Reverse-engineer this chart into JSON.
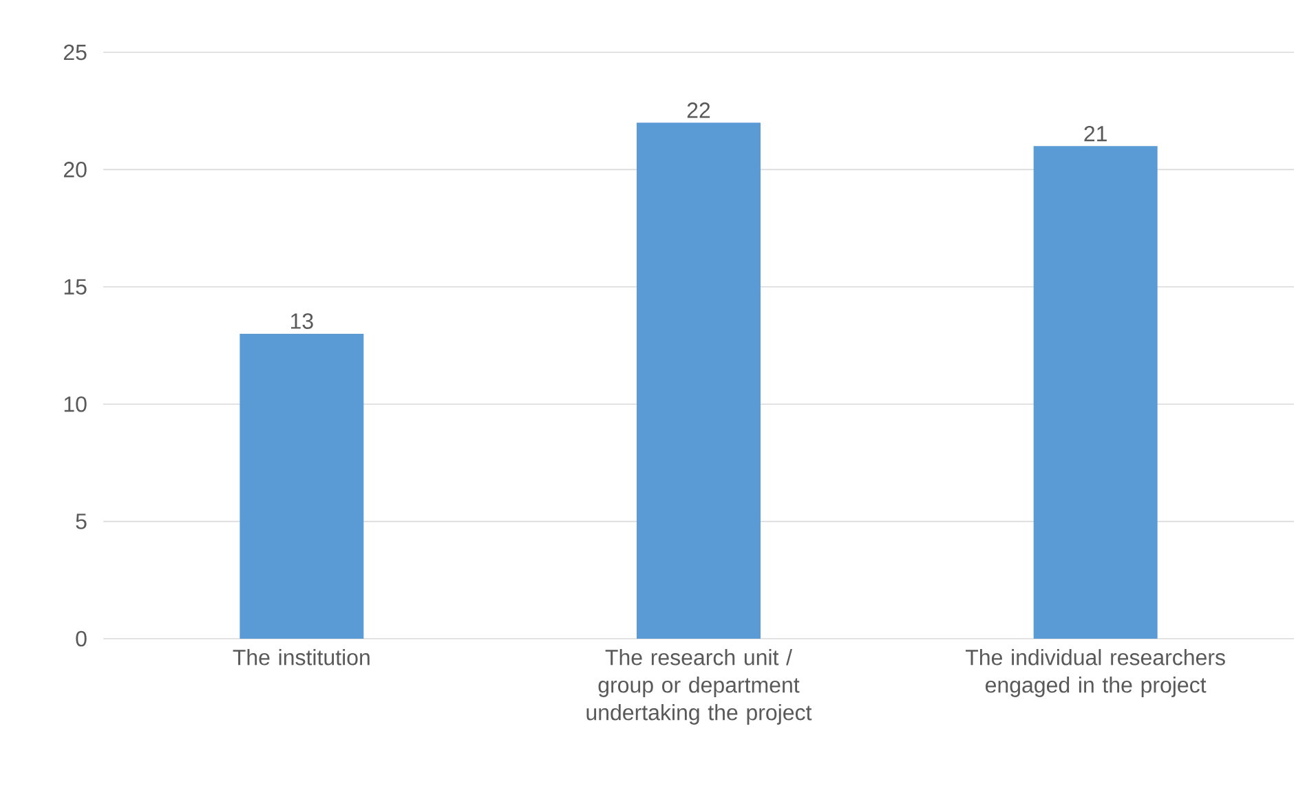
{
  "chart_data": {
    "type": "bar",
    "categories": [
      "The institution",
      "The research unit / group or department undertaking the project",
      "The individual researchers engaged in the project"
    ],
    "values": [
      13,
      22,
      21
    ],
    "color": "#5b9bd5",
    "ylim": [
      0,
      25
    ],
    "yticks": [
      0,
      5,
      10,
      15,
      20,
      25
    ],
    "grid": "y",
    "data_labels": true
  }
}
